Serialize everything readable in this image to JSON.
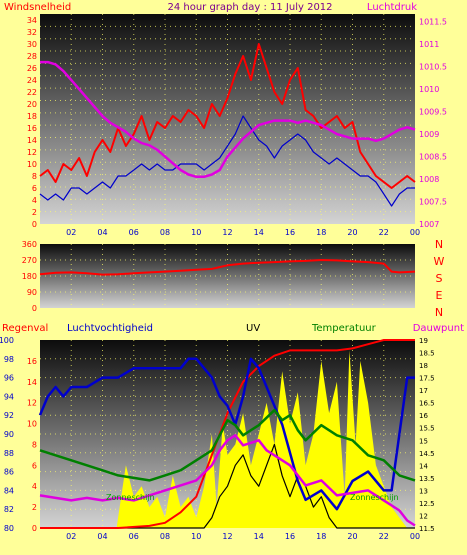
{
  "colors": {
    "background": "#ffff99",
    "red": "#ff0000",
    "blue": "#0000cc",
    "magenta": "#e000e0",
    "green": "#008000",
    "yellow": "#ffff00",
    "black": "#000000",
    "purple": "#7a0090",
    "plot_top": "#0c0c0c",
    "plot_bottom": "#d4d4d4",
    "grid": "#ffff66"
  },
  "chart_data": [
    {
      "type": "line",
      "title": "24 hour graph day : 11 July 2012",
      "left_label": "Windsnelheid",
      "right_label": "Luchtdruk",
      "x_ticks": [
        "02",
        "04",
        "06",
        "08",
        "10",
        "12",
        "14",
        "16",
        "18",
        "20",
        "22",
        "00"
      ],
      "y_left": {
        "range": [
          0,
          35
        ],
        "ticks": [
          "0",
          "2",
          "4",
          "6",
          "8",
          "10",
          "12",
          "14",
          "16",
          "18",
          "20",
          "22",
          "24",
          "26",
          "28",
          "30",
          "32",
          "34"
        ]
      },
      "y_right": {
        "range": [
          1007,
          1011.67
        ],
        "ticks": [
          "1007",
          "1007.5",
          "1008",
          "1008.5",
          "1009",
          "1009.5",
          "1010",
          "1010.5",
          "1011",
          "1011.5"
        ]
      },
      "series": [
        {
          "name": "wind gust",
          "axis": "left",
          "color": "red",
          "x": [
            0.0,
            0.5,
            1.0,
            1.5,
            2.0,
            2.5,
            3.0,
            3.5,
            4.0,
            4.5,
            5.0,
            5.5,
            6.0,
            6.5,
            7.0,
            7.5,
            8.0,
            8.5,
            9.0,
            9.5,
            10.0,
            10.5,
            11.0,
            11.5,
            12.0,
            12.5,
            13.0,
            13.5,
            14.0,
            14.5,
            15.0,
            15.5,
            16.0,
            16.5,
            17.0,
            17.5,
            18.0,
            18.5,
            19.0,
            19.5,
            20.0,
            20.5,
            21.0,
            21.5,
            22.0,
            22.5,
            23.0,
            23.5,
            24.0
          ],
          "y": [
            8,
            9,
            7,
            10,
            9,
            11,
            8,
            12,
            14,
            12,
            16,
            13,
            15,
            18,
            14,
            17,
            16,
            18,
            17,
            19,
            18,
            16,
            20,
            18,
            21,
            25,
            28,
            24,
            30,
            26,
            22,
            20,
            24,
            26,
            19,
            18,
            16,
            17,
            18,
            16,
            17,
            12,
            10,
            8,
            7,
            6,
            7,
            8,
            7
          ]
        },
        {
          "name": "wind avg",
          "axis": "left",
          "color": "blue",
          "x": [
            0.0,
            0.5,
            1.0,
            1.5,
            2.0,
            2.5,
            3.0,
            3.5,
            4.0,
            4.5,
            5.0,
            5.5,
            6.0,
            6.5,
            7.0,
            7.5,
            8.0,
            8.5,
            9.0,
            9.5,
            10.0,
            10.5,
            11.0,
            11.5,
            12.0,
            12.5,
            13.0,
            13.5,
            14.0,
            14.5,
            15.0,
            15.5,
            16.0,
            16.5,
            17.0,
            17.5,
            18.0,
            18.5,
            19.0,
            19.5,
            20.0,
            20.5,
            21.0,
            21.5,
            22.0,
            22.5,
            23.0,
            23.5,
            24.0
          ],
          "y": [
            5,
            4,
            5,
            4,
            6,
            6,
            5,
            6,
            7,
            6,
            8,
            8,
            9,
            10,
            9,
            10,
            9,
            9,
            10,
            10,
            10,
            9,
            10,
            11,
            13,
            15,
            18,
            16,
            14,
            13,
            11,
            13,
            14,
            15,
            14,
            12,
            11,
            10,
            11,
            10,
            9,
            8,
            8,
            7,
            5,
            3,
            5,
            6,
            6
          ]
        },
        {
          "name": "luchtdruk",
          "axis": "right",
          "color": "magenta",
          "x": [
            0,
            0.5,
            1,
            1.5,
            2,
            2.5,
            3,
            3.5,
            4,
            4.5,
            5,
            5.5,
            6,
            6.5,
            7,
            7.5,
            8,
            8.5,
            9,
            9.5,
            10,
            10.5,
            11,
            11.5,
            12,
            12.5,
            13,
            13.5,
            14,
            14.5,
            15,
            15.5,
            16,
            16.5,
            17,
            17.5,
            18,
            18.5,
            19,
            19.5,
            20,
            20.5,
            21,
            21.5,
            22,
            22.5,
            23,
            23.5,
            24
          ],
          "y": [
            1010.6,
            1010.6,
            1010.55,
            1010.4,
            1010.2,
            1010.0,
            1009.8,
            1009.6,
            1009.4,
            1009.25,
            1009.15,
            1009.05,
            1008.9,
            1008.8,
            1008.75,
            1008.65,
            1008.5,
            1008.35,
            1008.2,
            1008.1,
            1008.05,
            1008.05,
            1008.1,
            1008.2,
            1008.5,
            1008.7,
            1008.9,
            1009.05,
            1009.2,
            1009.25,
            1009.3,
            1009.3,
            1009.3,
            1009.25,
            1009.3,
            1009.25,
            1009.2,
            1009.1,
            1009.0,
            1008.95,
            1008.9,
            1008.9,
            1008.9,
            1008.85,
            1008.9,
            1009.0,
            1009.1,
            1009.15,
            1009.1
          ]
        }
      ]
    },
    {
      "type": "line",
      "y_ticks": [
        "0",
        "90",
        "180",
        "270",
        "360"
      ],
      "y_range": [
        0,
        360
      ],
      "compass": [
        "N",
        "W",
        "S",
        "E",
        "N"
      ],
      "series": [
        {
          "name": "windrichting",
          "color": "red",
          "x": [
            0,
            1,
            2,
            3,
            4,
            5,
            6,
            7,
            8,
            9,
            10,
            11,
            12,
            13,
            14,
            15,
            16,
            17,
            18,
            19,
            20,
            21,
            22,
            22.5,
            23,
            24
          ],
          "y": [
            190,
            198,
            200,
            195,
            188,
            190,
            195,
            200,
            205,
            210,
            215,
            220,
            240,
            250,
            255,
            258,
            262,
            265,
            270,
            268,
            262,
            258,
            250,
            205,
            200,
            205
          ]
        }
      ]
    },
    {
      "type": "line",
      "labels": {
        "regenval": "Regenval",
        "luchtvochtigheid": "Luchtvochtigheid",
        "uv": "UV",
        "temperatuur": "Temperatuur",
        "dauwpunt": "Dauwpunt",
        "zonneschijn": "Zonneschijn"
      },
      "y_rain": {
        "range": [
          0,
          18
        ],
        "ticks": [
          "0",
          "2",
          "4",
          "6",
          "8",
          "10",
          "12",
          "14",
          "16"
        ]
      },
      "y_hum": {
        "range": [
          80,
          100
        ],
        "ticks": [
          "80",
          "82",
          "84",
          "86",
          "88",
          "90",
          "92",
          "94",
          "96",
          "98",
          "100"
        ]
      },
      "y_temp": {
        "range": [
          11.5,
          19
        ],
        "ticks": [
          "11.5",
          "12",
          "12.5",
          "13",
          "13.5",
          "14",
          "14.5",
          "15",
          "15.5",
          "16",
          "16.5",
          "17",
          "17.5",
          "18",
          "18.5",
          "19"
        ]
      },
      "series": [
        {
          "name": "regenval",
          "axis": "rain",
          "color": "red",
          "x": [
            0,
            5,
            7,
            8,
            9,
            10,
            10.5,
            11,
            11.5,
            12,
            13,
            14,
            15,
            16,
            17,
            18,
            19,
            20,
            21,
            22,
            23,
            24
          ],
          "y": [
            0,
            0,
            0.2,
            0.5,
            1.5,
            3,
            5,
            7,
            9,
            11,
            14,
            15.5,
            16.5,
            17,
            17,
            17,
            17,
            17.2,
            17.6,
            18,
            18,
            18
          ]
        },
        {
          "name": "luchtvochtigheid",
          "axis": "hum",
          "color": "blue",
          "x": [
            0,
            0.5,
            1,
            1.5,
            2,
            3,
            4,
            5,
            6,
            7,
            8,
            9,
            9.5,
            10,
            10.5,
            11,
            11.5,
            12,
            12.5,
            13,
            13.5,
            14,
            14.5,
            15,
            15.5,
            16,
            16.5,
            17,
            18,
            19,
            20,
            21,
            22,
            22.5,
            23,
            23.5,
            24
          ],
          "y": [
            92,
            94,
            95,
            94,
            95,
            95,
            96,
            96,
            97,
            97,
            97,
            97,
            98,
            98,
            97,
            96,
            94,
            93,
            91,
            94,
            98,
            97,
            95,
            93,
            91,
            88,
            85,
            83,
            84,
            82,
            85,
            86,
            84,
            84,
            90,
            96,
            96
          ]
        },
        {
          "name": "temperatuur",
          "axis": "temp",
          "color": "green",
          "x": [
            0,
            1,
            2,
            3,
            4,
            5,
            6,
            7,
            8,
            9,
            10,
            11,
            11.5,
            12,
            12.5,
            13,
            13.5,
            14,
            15,
            15.5,
            16,
            16.5,
            17,
            18,
            19,
            20,
            21,
            22,
            23,
            24
          ],
          "y": [
            14.6,
            14.4,
            14.2,
            14.0,
            13.8,
            13.6,
            13.5,
            13.4,
            13.6,
            13.8,
            14.2,
            14.6,
            15.2,
            15.8,
            15.6,
            15.2,
            15.4,
            15.6,
            16.2,
            15.8,
            16.0,
            15.4,
            15.0,
            15.6,
            15.2,
            15.0,
            14.4,
            14.2,
            13.6,
            13.4
          ]
        },
        {
          "name": "dauwpunt",
          "axis": "temp",
          "color": "magenta",
          "x": [
            0,
            1,
            2,
            3,
            4,
            5,
            6,
            7,
            8,
            9,
            10,
            11,
            11.5,
            12,
            12.5,
            13,
            14,
            14.5,
            15,
            16,
            16.5,
            17,
            18,
            19,
            20,
            21,
            22,
            22.5,
            23,
            23.5,
            24
          ],
          "y": [
            12.8,
            12.7,
            12.6,
            12.7,
            12.6,
            12.7,
            12.6,
            12.8,
            13.0,
            13.2,
            13.4,
            14.0,
            14.6,
            15.0,
            15.2,
            14.8,
            15.0,
            14.6,
            14.4,
            14.0,
            13.6,
            13.2,
            13.4,
            12.8,
            12.9,
            13.0,
            12.6,
            12.4,
            12.2,
            11.8,
            11.6
          ]
        },
        {
          "name": "uv",
          "axis": "rain",
          "color": "black",
          "x": [
            0,
            5,
            6,
            7,
            8,
            9,
            10,
            10.5,
            11,
            11.5,
            12,
            12.5,
            13,
            13.5,
            14,
            14.5,
            15,
            15.5,
            16,
            16.5,
            17,
            17.5,
            18,
            18.5,
            19,
            20,
            21,
            22,
            24
          ],
          "y": [
            0,
            0,
            0,
            0,
            0,
            0,
            0,
            0,
            1,
            3,
            4,
            6,
            7,
            5,
            4,
            6,
            8,
            5,
            3,
            5,
            4,
            2,
            3,
            1,
            0,
            0,
            0,
            0,
            0
          ]
        },
        {
          "name": "zonneschijn",
          "axis": "rain",
          "color": "yellow",
          "x": [
            0,
            4.9,
            5,
            5.5,
            6,
            6.5,
            7,
            7.5,
            8,
            8.5,
            9,
            9.5,
            10,
            10.5,
            11,
            11.3,
            11.7,
            12,
            12.5,
            13,
            13.5,
            14,
            14.5,
            15,
            15.5,
            16,
            16.5,
            17,
            17.5,
            18,
            18.5,
            19,
            19.5,
            19.8,
            20.2,
            20.5,
            21,
            21.5,
            22,
            22.5,
            23,
            23.5,
            23.8,
            24
          ],
          "y": [
            0,
            0,
            1,
            6,
            3,
            4,
            2,
            3,
            1,
            5,
            2,
            3,
            1,
            4,
            9,
            2,
            10,
            7,
            8,
            11,
            6,
            9,
            12,
            8,
            15,
            10,
            13,
            6,
            9,
            16,
            11,
            14,
            3,
            17,
            8,
            16,
            12,
            6,
            4,
            2,
            1,
            0,
            0,
            0
          ]
        }
      ]
    }
  ]
}
